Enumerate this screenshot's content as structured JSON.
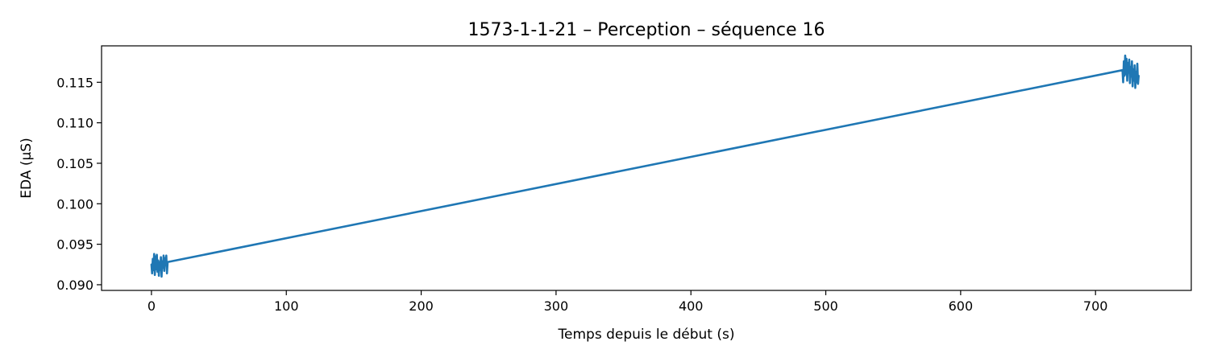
{
  "chart_data": {
    "type": "line",
    "title": "1573-1-1-21 – Perception – séquence 16",
    "xlabel": "Temps depuis le début (s)",
    "ylabel": "EDA (µS)",
    "xlim": [
      -37,
      771
    ],
    "ylim": [
      0.0893,
      0.1195
    ],
    "xticks": [
      0,
      100,
      200,
      300,
      400,
      500,
      600,
      700
    ],
    "yticks": [
      0.09,
      0.095,
      0.1,
      0.105,
      0.11,
      0.115
    ],
    "xtick_labels": [
      "0",
      "100",
      "200",
      "300",
      "400",
      "500",
      "600",
      "700"
    ],
    "ytick_labels": [
      "0.090",
      "0.095",
      "0.100",
      "0.105",
      "0.110",
      "0.115"
    ],
    "grid": false,
    "legend": "none",
    "series": [
      {
        "color": "#1f77b4",
        "x": [
          0,
          0.5,
          1,
          1.5,
          2,
          2.5,
          3,
          3.5,
          4,
          4.5,
          5,
          5.5,
          6,
          6.5,
          7,
          7.5,
          8,
          8.5,
          9,
          9.5,
          10,
          10.5,
          11,
          11.5,
          12,
          720,
          720.5,
          721,
          721.5,
          722,
          722.5,
          723,
          723.5,
          724,
          724.5,
          725,
          725.5,
          726,
          726.5,
          727,
          727.5,
          728,
          728.5,
          729,
          729.5,
          730,
          730.5,
          731,
          731.5,
          732
        ],
        "y": [
          0.0925,
          0.0914,
          0.0932,
          0.0918,
          0.0938,
          0.0912,
          0.0935,
          0.0919,
          0.0937,
          0.0916,
          0.093,
          0.0911,
          0.0928,
          0.0918,
          0.0934,
          0.091,
          0.0929,
          0.0921,
          0.0936,
          0.0917,
          0.0933,
          0.0924,
          0.0936,
          0.0914,
          0.0928,
          0.1165,
          0.115,
          0.1176,
          0.1158,
          0.1183,
          0.116,
          0.1179,
          0.1152,
          0.1174,
          0.1162,
          0.1178,
          0.1149,
          0.1169,
          0.1157,
          0.1176,
          0.1145,
          0.1166,
          0.1152,
          0.1171,
          0.1143,
          0.1163,
          0.115,
          0.1173,
          0.1148,
          0.1158
        ]
      }
    ]
  }
}
